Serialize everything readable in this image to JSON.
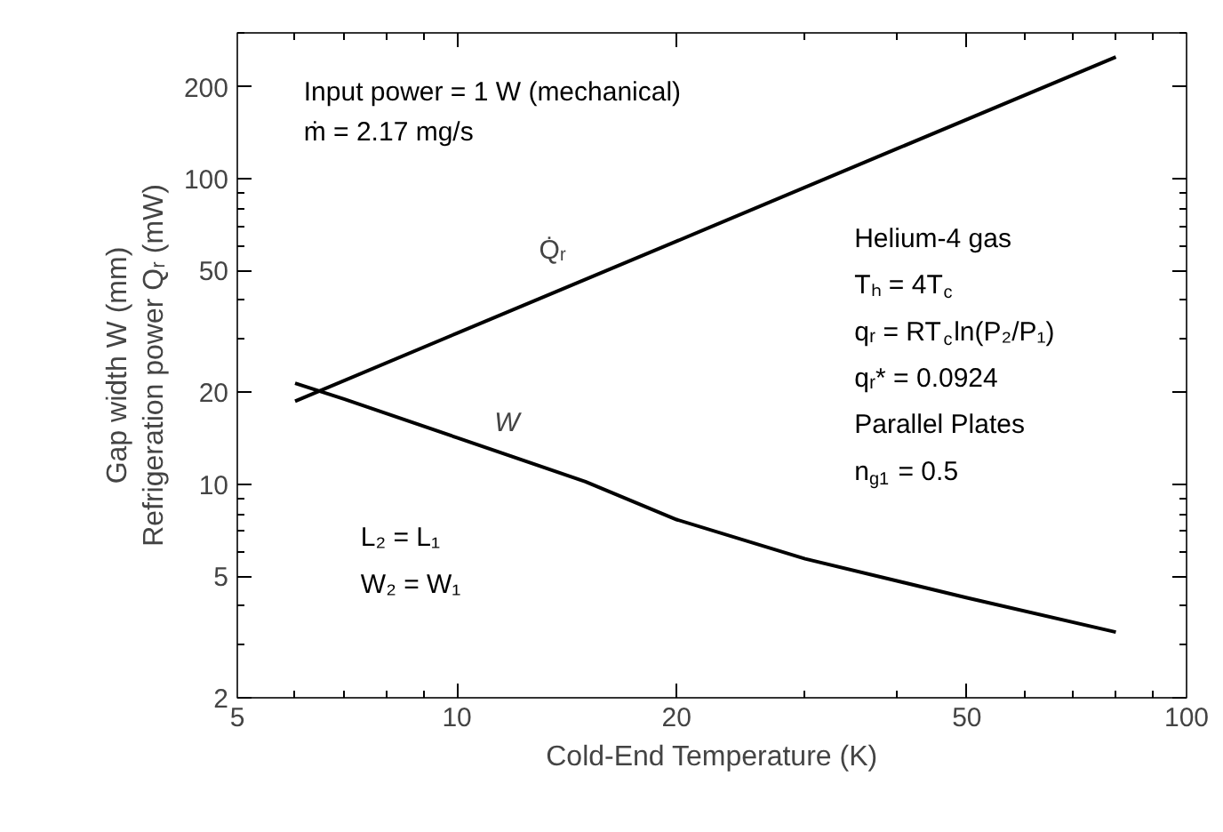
{
  "chart_data": {
    "type": "line",
    "xlabel": "Cold-End Temperature (K)",
    "ylabel": "Gap width W (mm)\nRefrigeration power Qᵣ (mW)",
    "log": "xy",
    "xlim": [
      5,
      100
    ],
    "xticks": [
      5,
      10,
      20,
      50,
      100
    ],
    "ylim": [
      2,
      300
    ],
    "yticks": [
      2,
      5,
      10,
      20,
      50,
      100,
      200
    ],
    "grid": false,
    "legend": false,
    "line_style": "solid",
    "marker": "none",
    "series": [
      {
        "name": "Q̇ᵣ",
        "color": "#000000",
        "x": [
          6,
          10,
          20,
          40,
          80
        ],
        "values": [
          18.7,
          31.2,
          62.4,
          125,
          250
        ]
      },
      {
        "name": "W",
        "color": "#000000",
        "x": [
          6,
          7,
          10,
          15,
          20,
          30,
          50,
          80
        ],
        "values": [
          21.4,
          19.0,
          14.2,
          10.2,
          7.66,
          5.7,
          4.25,
          3.28
        ]
      }
    ],
    "annotations": [
      "Input power = 1 W (mechanical)",
      "ṁ = 2.17 mg/s",
      "Helium-4 gas",
      "Tₕ = 4T$_{c}$",
      "qᵣ = RT$_{c}$ln(P₂/P₁)",
      "qᵣ* = 0.0924",
      "Parallel Plates",
      "n$_{g1}$ = 0.5",
      "L₂ = L₁",
      "W₂ = W₁"
    ]
  }
}
